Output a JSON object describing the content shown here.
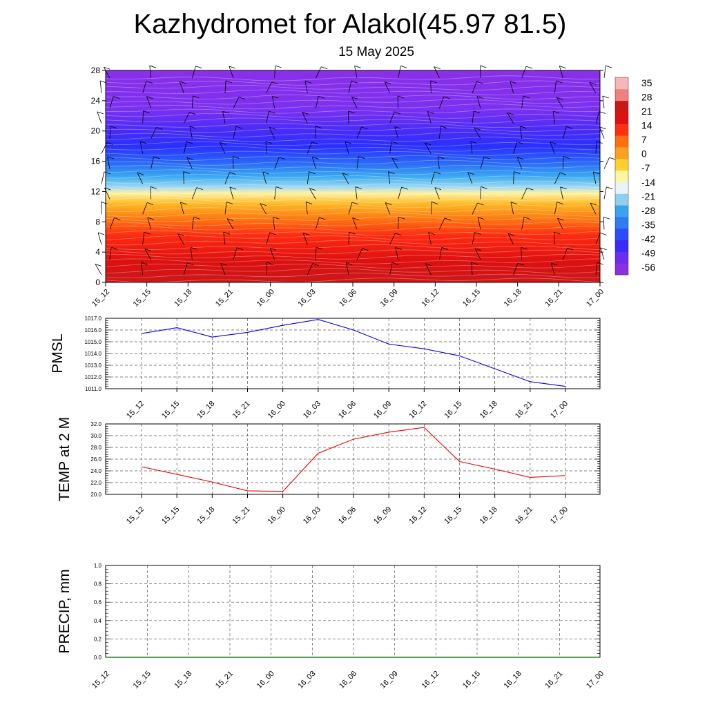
{
  "title": "Kazhydromet for Alakol(45.97 81.5)",
  "subtitle": "15 May 2025",
  "time_labels": [
    "15_12",
    "15_15",
    "15_18",
    "15_21",
    "16_00",
    "16_03",
    "16_06",
    "16_09",
    "16_12",
    "16_15",
    "16_18",
    "16_21",
    "17_00"
  ],
  "chart_data": [
    {
      "type": "heatmap",
      "title": "",
      "xlabel": "",
      "ylabel": "",
      "x": [
        "15_12",
        "15_15",
        "15_18",
        "15_21",
        "16_00",
        "16_03",
        "16_06",
        "16_09",
        "16_12",
        "16_15",
        "16_18",
        "16_21",
        "17_00"
      ],
      "ylim": [
        0,
        28
      ],
      "yticks": [
        0,
        4,
        8,
        12,
        16,
        20,
        24,
        28
      ],
      "colorbar": {
        "labels": [
          "35",
          "28",
          "21",
          "14",
          "7",
          "0",
          "-7",
          "-14",
          "-21",
          "-28",
          "-35",
          "-42",
          "-49",
          "-56"
        ],
        "range": [
          -60,
          37
        ],
        "colors": [
          "#8b2fe0",
          "#6a2ef0",
          "#3a2cf8",
          "#2a4cff",
          "#2e7df0",
          "#3aa3f0",
          "#8fd0f0",
          "#e8f4f8",
          "#fff7a0",
          "#ffd030",
          "#ffa020",
          "#ff7010",
          "#ff3010",
          "#e01010",
          "#c81818",
          "#f08080",
          "#f5b8b8"
        ]
      },
      "wind_barbs": true,
      "dominant_colors": [
        "#8b2fe0",
        "#2a3cff",
        "#4fc0f0",
        "#fff3a0",
        "#ffb020",
        "#ff2a10",
        "#cc1a1a"
      ]
    },
    {
      "type": "line",
      "title": "",
      "xlabel": "",
      "ylabel": "PMSL",
      "categories": [
        "15_12",
        "15_15",
        "15_18",
        "15_21",
        "16_00",
        "16_03",
        "16_06",
        "16_09",
        "16_12",
        "16_15",
        "16_18",
        "16_21",
        "17_00"
      ],
      "series": [
        {
          "values": [
            1015.7,
            1016.2,
            1015.4,
            1015.8,
            1016.4,
            1016.9,
            1016.0,
            1014.8,
            1014.4,
            1013.8,
            1012.7,
            1011.6,
            1011.2
          ],
          "color": "#0000ee"
        }
      ],
      "ylim": [
        1011.0,
        1017.0
      ],
      "yticks": [
        "1011.0",
        "1012.0",
        "1013.0",
        "1014.0",
        "1015.0",
        "1016.0",
        "1017.0"
      ],
      "grid": true
    },
    {
      "type": "line",
      "title": "",
      "xlabel": "",
      "ylabel": "TEMP at 2 M",
      "categories": [
        "15_12",
        "15_15",
        "15_18",
        "15_21",
        "16_00",
        "16_03",
        "16_06",
        "16_09",
        "16_12",
        "16_15",
        "16_18",
        "16_21",
        "17_00"
      ],
      "series": [
        {
          "values": [
            24.7,
            23.4,
            22.1,
            20.6,
            20.5,
            27.0,
            29.4,
            30.6,
            31.4,
            25.6,
            24.3,
            22.9,
            23.2
          ],
          "color": "#ee0000"
        }
      ],
      "ylim": [
        20.0,
        32.0
      ],
      "yticks": [
        "20.0",
        "22.0",
        "24.0",
        "26.0",
        "28.0",
        "30.0",
        "32.0"
      ],
      "grid": true
    },
    {
      "type": "line",
      "title": "",
      "xlabel": "",
      "ylabel": "PRECIP, mm",
      "categories": [
        "15_12",
        "15_15",
        "15_18",
        "15_21",
        "16_00",
        "16_03",
        "16_06",
        "16_09",
        "16_12",
        "16_15",
        "16_18",
        "16_21",
        "17_00"
      ],
      "series": [
        {
          "values": [
            0,
            0,
            0,
            0,
            0,
            0,
            0,
            0,
            0,
            0,
            0,
            0,
            0
          ],
          "color": "#006400"
        }
      ],
      "ylim": [
        0.0,
        1.0
      ],
      "yticks": [
        "0.0",
        "0.2",
        "0.4",
        "0.6",
        "0.8",
        "1.0"
      ],
      "grid": true
    }
  ]
}
